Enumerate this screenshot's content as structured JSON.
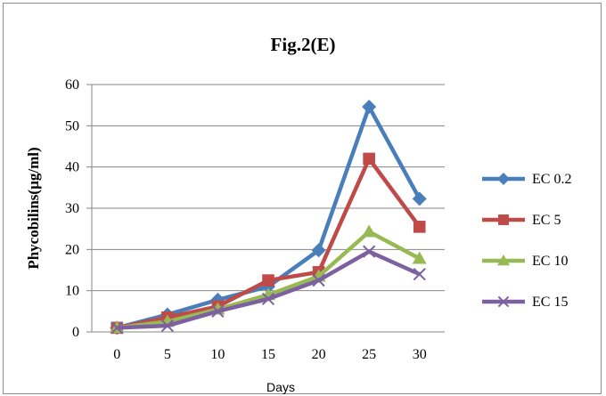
{
  "chart_data": {
    "type": "line",
    "title": "Fig.2(E)",
    "xlabel": "Days",
    "ylabel": "Phycobilins(µg/ml)",
    "x": [
      0,
      5,
      10,
      15,
      20,
      25,
      30
    ],
    "xlim": [
      0,
      30
    ],
    "ylim": [
      0,
      60
    ],
    "yticks": [
      0,
      10,
      20,
      30,
      40,
      50,
      60
    ],
    "grid": "horizontal",
    "legend_position": "right",
    "series": [
      {
        "name": "EC 0.2",
        "color": "#4a7ebb",
        "marker": "diamond",
        "values": [
          1,
          4.2,
          7.8,
          11,
          19.8,
          54.6,
          32.3
        ]
      },
      {
        "name": "EC 5",
        "color": "#be4b48",
        "marker": "square",
        "values": [
          1,
          3.5,
          6.2,
          12.5,
          14.5,
          42,
          25.5
        ]
      },
      {
        "name": "EC 10",
        "color": "#98b954",
        "marker": "triangle",
        "values": [
          1,
          2.5,
          5.5,
          9,
          13.5,
          24.3,
          17.8
        ]
      },
      {
        "name": "EC 15",
        "color": "#7d60a0",
        "marker": "x",
        "values": [
          1,
          1.5,
          5,
          8,
          12.5,
          19.5,
          14
        ]
      }
    ]
  }
}
